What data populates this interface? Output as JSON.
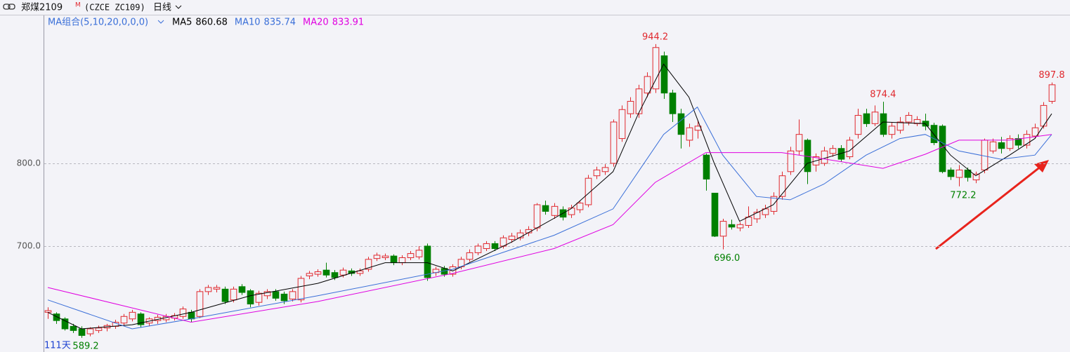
{
  "chart_data": {
    "type": "candlestick",
    "symbol": "郑煤2109",
    "symbol_sup": "M",
    "code": "(CZCE ZC109)",
    "period": "日线",
    "ma_group_label": "MA组合(5,10,20,0,0,0)",
    "period_label": "111天",
    "up_color": "#e0282e",
    "down_color": "#008000",
    "ylim": [
      572,
      978.8
    ],
    "yticks": [
      {
        "value": 700,
        "label": "700.0"
      },
      {
        "value": 800,
        "label": "800.0"
      }
    ],
    "grid": true,
    "ohlc": [
      [
        620,
        626,
        612,
        622
      ],
      [
        618,
        620,
        606,
        610
      ],
      [
        612,
        614,
        598,
        600
      ],
      [
        603,
        606,
        595,
        598
      ],
      [
        600,
        603,
        589.2,
        592
      ],
      [
        594,
        602,
        591,
        600
      ],
      [
        598,
        604,
        595,
        601
      ],
      [
        601,
        606,
        597,
        604
      ],
      [
        603,
        611,
        600,
        608
      ],
      [
        607,
        618,
        604,
        615
      ],
      [
        612,
        623,
        609,
        620
      ],
      [
        618,
        620,
        602,
        605
      ],
      [
        607,
        614,
        603,
        612
      ],
      [
        610,
        617,
        606,
        614
      ],
      [
        611,
        618,
        608,
        615
      ],
      [
        613,
        619,
        610,
        616
      ],
      [
        615,
        627,
        612,
        624
      ],
      [
        620,
        623,
        608,
        612
      ],
      [
        615,
        648,
        613,
        645
      ],
      [
        645,
        653,
        641,
        650
      ],
      [
        648,
        653,
        644,
        650
      ],
      [
        648,
        651,
        630,
        633
      ],
      [
        635,
        651,
        632,
        648
      ],
      [
        651,
        654,
        641,
        644
      ],
      [
        646,
        648,
        626,
        630
      ],
      [
        632,
        646,
        628,
        643
      ],
      [
        640,
        648,
        636,
        645
      ],
      [
        645,
        648,
        634,
        637
      ],
      [
        642,
        645,
        630,
        634
      ],
      [
        636,
        648,
        633,
        645
      ],
      [
        635,
        664,
        632,
        661
      ],
      [
        664,
        670,
        660,
        667
      ],
      [
        666,
        672,
        663,
        669
      ],
      [
        671,
        680,
        662,
        665
      ],
      [
        668,
        671,
        659,
        662
      ],
      [
        665,
        674,
        662,
        671
      ],
      [
        670,
        673,
        664,
        667
      ],
      [
        667,
        673,
        664,
        670
      ],
      [
        672,
        687,
        669,
        684
      ],
      [
        685,
        692,
        682,
        689
      ],
      [
        686,
        691,
        683,
        688
      ],
      [
        688,
        690,
        677,
        680
      ],
      [
        680,
        689,
        677,
        686
      ],
      [
        686,
        694,
        683,
        691
      ],
      [
        687,
        700,
        684,
        695
      ],
      [
        700,
        703,
        658,
        662
      ],
      [
        668,
        675,
        664,
        672
      ],
      [
        673,
        676,
        663,
        666
      ],
      [
        666,
        678,
        663,
        675
      ],
      [
        675,
        687,
        672,
        684
      ],
      [
        684,
        696,
        681,
        692
      ],
      [
        692,
        703,
        689,
        700
      ],
      [
        697,
        706,
        694,
        703
      ],
      [
        703,
        706,
        694,
        697
      ],
      [
        700,
        713,
        697,
        710
      ],
      [
        708,
        716,
        704,
        712
      ],
      [
        710,
        720,
        707,
        716
      ],
      [
        716,
        724,
        712,
        720
      ],
      [
        722,
        752,
        718,
        750
      ],
      [
        749,
        755,
        738,
        742
      ],
      [
        737,
        752,
        733,
        748
      ],
      [
        744,
        748,
        731,
        735
      ],
      [
        738,
        750,
        734,
        746
      ],
      [
        744,
        755,
        740,
        752
      ],
      [
        750,
        786,
        747,
        782
      ],
      [
        785,
        796,
        781,
        792
      ],
      [
        790,
        799,
        786,
        795
      ],
      [
        800,
        853,
        796,
        850
      ],
      [
        830,
        870,
        826,
        865
      ],
      [
        860,
        880,
        855,
        875
      ],
      [
        860,
        895,
        855,
        890
      ],
      [
        885,
        910,
        880,
        905
      ],
      [
        890,
        944.2,
        885,
        940
      ],
      [
        930,
        935,
        878,
        885
      ],
      [
        885,
        889,
        850,
        860
      ],
      [
        860,
        866,
        818,
        835
      ],
      [
        828,
        848,
        820,
        843
      ],
      [
        840,
        852,
        830,
        845
      ],
      [
        810,
        812,
        767,
        781
      ],
      [
        764,
        764,
        711,
        712
      ],
      [
        712,
        733,
        696,
        730
      ],
      [
        726,
        732,
        720,
        723
      ],
      [
        722,
        729,
        718,
        726
      ],
      [
        725,
        748,
        722,
        735
      ],
      [
        733,
        745,
        728,
        741
      ],
      [
        738,
        750,
        734,
        745
      ],
      [
        742,
        765,
        738,
        760
      ],
      [
        760,
        790,
        756,
        785
      ],
      [
        790,
        820,
        786,
        815
      ],
      [
        815,
        853,
        810,
        835
      ],
      [
        828,
        830,
        775,
        790
      ],
      [
        798,
        812,
        790,
        808
      ],
      [
        800,
        820,
        797,
        815
      ],
      [
        812,
        822,
        808,
        818
      ],
      [
        818,
        822,
        802,
        805
      ],
      [
        808,
        832,
        805,
        828
      ],
      [
        835,
        866,
        830,
        858
      ],
      [
        860,
        866,
        844,
        848
      ],
      [
        848,
        870,
        845,
        862
      ],
      [
        860,
        874.4,
        832,
        835
      ],
      [
        835,
        850,
        830,
        845
      ],
      [
        840,
        856,
        836,
        850
      ],
      [
        850,
        862,
        846,
        858
      ],
      [
        848,
        857,
        845,
        853
      ],
      [
        851,
        860,
        840,
        845
      ],
      [
        846,
        849,
        822,
        825
      ],
      [
        845,
        847,
        788,
        790
      ],
      [
        792,
        795,
        780,
        784
      ],
      [
        783,
        798,
        772.2,
        792
      ],
      [
        792,
        795,
        778,
        783
      ],
      [
        780,
        790,
        776,
        787
      ],
      [
        792,
        830,
        788,
        828
      ],
      [
        815,
        830,
        812,
        826
      ],
      [
        825,
        832,
        812,
        818
      ],
      [
        818,
        834,
        815,
        830
      ],
      [
        830,
        835,
        818,
        822
      ],
      [
        822,
        840,
        818,
        835
      ],
      [
        833,
        848,
        830,
        843
      ],
      [
        845,
        874,
        842,
        870
      ],
      [
        875,
        897.8,
        872,
        895
      ]
    ],
    "high_labels": [
      {
        "candle": 72,
        "label": "944.2"
      },
      {
        "candle": 99,
        "label": "874.4"
      },
      {
        "candle": 119,
        "label": "897.8"
      }
    ],
    "low_labels": [
      {
        "candle": 4,
        "label": "589.2"
      },
      {
        "candle": 80,
        "label": "696.0"
      },
      {
        "candle": 108,
        "label": "772.2"
      }
    ],
    "series": [
      {
        "name": "MA5",
        "color": "#000000",
        "last": 860.68,
        "x": [
          0,
          4,
          10,
          17,
          24,
          32,
          40,
          45,
          48,
          55,
          62,
          67,
          70,
          73,
          76,
          79,
          82,
          86,
          90,
          95,
          99,
          104,
          107,
          110,
          114,
          117,
          119
        ],
        "values": [
          620,
          600,
          605,
          620,
          640,
          655,
          680,
          680,
          670,
          705,
          745,
          790,
          860,
          920,
          880,
          800,
          730,
          750,
          800,
          815,
          850,
          848,
          810,
          785,
          810,
          830,
          860
        ]
      },
      {
        "name": "MA10",
        "color": "#3a6fd8",
        "last": 835.74,
        "x": [
          0,
          10,
          17,
          32,
          48,
          60,
          67,
          70,
          73,
          77,
          80,
          84,
          88,
          92,
          97,
          101,
          104,
          108,
          113,
          117,
          119
        ],
        "values": [
          635,
          600,
          612,
          640,
          672,
          713,
          745,
          790,
          835,
          868,
          810,
          760,
          756,
          775,
          810,
          830,
          835,
          815,
          805,
          810,
          835
        ]
      },
      {
        "name": "MA20",
        "color": "#e000e0",
        "last": 833.91,
        "x": [
          0,
          17,
          32,
          48,
          60,
          67,
          72,
          78,
          87,
          91,
          99,
          104,
          108,
          114,
          119
        ],
        "values": [
          650,
          608,
          633,
          667,
          697,
          726,
          777,
          813,
          813,
          807,
          794,
          811,
          828,
          828,
          835
        ]
      }
    ]
  }
}
